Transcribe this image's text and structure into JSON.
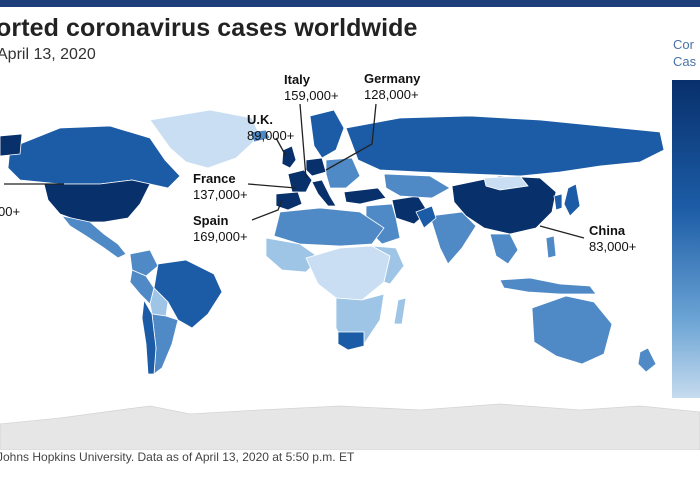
{
  "header": {
    "title": "orted coronavirus cases worldwide",
    "subtitle": "April 13, 2020"
  },
  "legend": {
    "title_line1": "Cor",
    "title_line2": "Cas",
    "color_dark": "#08306b",
    "color_light": "#c6dbef"
  },
  "callouts": {
    "italy": {
      "name": "Italy",
      "value": "159,000+"
    },
    "germany": {
      "name": "Germany",
      "value": "128,000+"
    },
    "uk": {
      "name": "U.K.",
      "value": "89,000+"
    },
    "france": {
      "name": "France",
      "value": "137,000+"
    },
    "spain": {
      "name": "Spain",
      "value": "169,000+"
    },
    "china": {
      "name": "China",
      "value": "83,000+"
    },
    "us_partial": {
      "value": "00+"
    }
  },
  "footer": {
    "source": "Johns Hopkins University. Data as of April 13, 2020 at 5:50 p.m. ET"
  },
  "colors": {
    "top_bar": "#1f3f7a",
    "highest": "#08306b",
    "high": "#1c5ca6",
    "mid": "#4f8ac6",
    "low": "#9ec5e6",
    "lowest": "#c9def2",
    "antarctica": "#e6e6e6"
  }
}
